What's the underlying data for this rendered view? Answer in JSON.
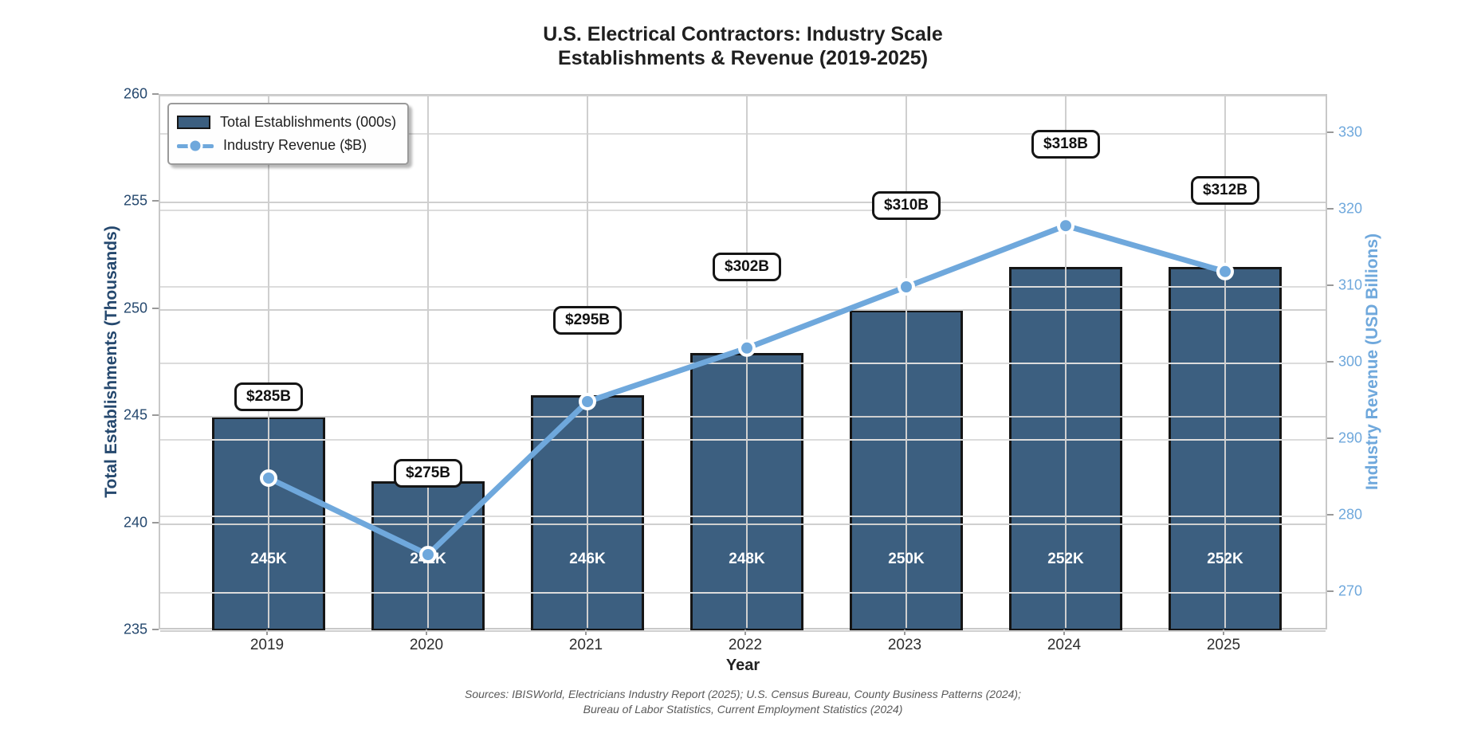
{
  "figure": {
    "title_line1": "U.S. Electrical Contractors: Industry Scale",
    "title_line2": "Establishments & Revenue (2019-2025)",
    "footer_line1": "Sources: IBISWorld, Electricians Industry Report (2025); U.S. Census Bureau, County Business Patterns (2024);",
    "footer_line2": "Bureau of Labor Statistics, Current Employment Statistics (2024)"
  },
  "legend": {
    "items": [
      {
        "label": "Total Establishments (000s)",
        "swatch": "bar-swatch"
      },
      {
        "label": "Industry Revenue ($B)",
        "swatch": "line-marker-swatch"
      }
    ]
  },
  "chart_data": {
    "type": "bar",
    "title": "U.S. Electrical Contractors: Industry Scale — Establishments & Revenue (2019-2025)",
    "categories": [
      "2019",
      "2020",
      "2021",
      "2022",
      "2023",
      "2024",
      "2025"
    ],
    "series": [
      {
        "name": "Total Establishments (000s)",
        "plot_type": "bar",
        "axis": "left",
        "values": [
          245,
          242,
          246,
          248,
          250,
          252,
          252
        ],
        "labels": [
          "245K",
          "242K",
          "246K",
          "248K",
          "250K",
          "252K",
          "252K"
        ]
      },
      {
        "name": "Industry Revenue ($B)",
        "plot_type": "line",
        "axis": "right",
        "values": [
          285,
          275,
          295,
          302,
          310,
          318,
          312
        ],
        "labels": [
          "$285B",
          "$275B",
          "$295B",
          "$302B",
          "$310B",
          "$318B",
          "$312B"
        ]
      }
    ],
    "xlabel": "Year",
    "ylabel_left": "Total Establishments (Thousands)",
    "ylabel_right": "Industry Revenue (USD Billions)",
    "ylim_left": [
      235,
      260
    ],
    "yticks_left": [
      235,
      240,
      245,
      250,
      255,
      260
    ],
    "ylim_right": [
      265,
      335
    ],
    "yticks_right": [
      270,
      280,
      290,
      300,
      310,
      320,
      330
    ],
    "grid": true,
    "legend_position": "upper left"
  },
  "colors": {
    "bar_fill": "#3c5f80",
    "bar_edge": "#151515",
    "line": "#6fa8dc",
    "marker_fill": "#6fa8dc",
    "marker_edge": "#ffffff",
    "left_axis_text": "#25486e",
    "right_axis_text": "#6fa8dc",
    "gridline": "#cfcfcf",
    "title_text": "#1f1f1f",
    "bar_label_text": "#ffffff",
    "annotation_border": "#151515",
    "footer_text": "#595959"
  }
}
